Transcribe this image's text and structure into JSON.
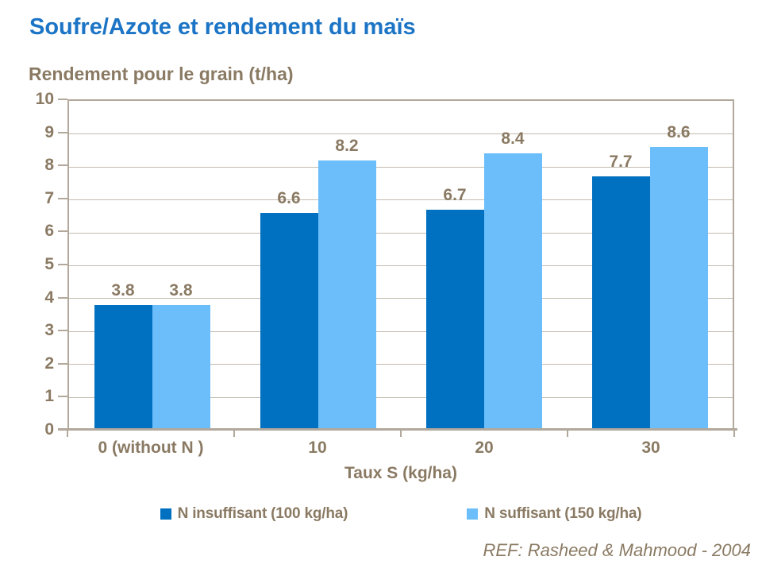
{
  "page": {
    "footer_ref": "REF: Rasheed & Mahmood - 2004"
  },
  "chart_data": {
    "type": "bar",
    "title": "Soufre/Azote et rendement du maïs",
    "y_axis_title": "Rendement pour le grain (t/ha)",
    "xlabel": "Taux S (kg/ha)",
    "ylabel": "Rendement pour le grain (t/ha)",
    "categories": [
      "0 (without N )",
      "10",
      "20",
      "30"
    ],
    "series": [
      {
        "name": "N insuffisant (100 kg/ha)",
        "color": "#0070c0",
        "values": [
          3.8,
          6.6,
          6.7,
          7.7
        ]
      },
      {
        "name": "N suffisant (150 kg/ha)",
        "color": "#6cbefb",
        "values": [
          3.8,
          8.2,
          8.4,
          8.6
        ]
      }
    ],
    "ylim": [
      0,
      10
    ],
    "ytick_step": 1,
    "grid": true,
    "legend_position": "bottom",
    "data_labels": true,
    "data_label_decimals": 1
  },
  "colors": {
    "title_blue": "#1b74c5",
    "text_brown": "#8a7a63",
    "gridline": "#c3bbae",
    "axis_border": "#b2a89b",
    "series1": "#0070c0",
    "series2": "#6cbefb"
  }
}
